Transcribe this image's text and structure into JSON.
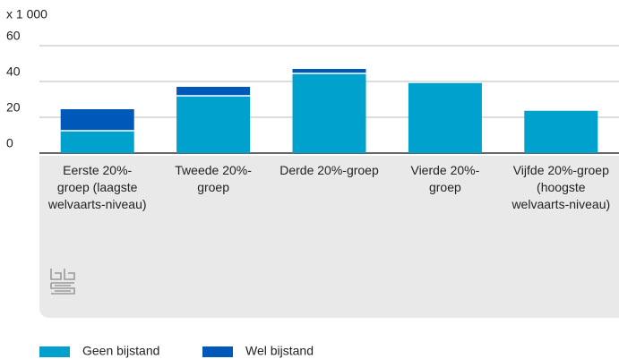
{
  "chart_data": {
    "type": "stacked-bar",
    "unit_label": "x 1 000",
    "categories": [
      "Eerste 20%-groep (laagste welvaarts-niveau)",
      "Tweede 20%-groep",
      "Derde 20%-groep",
      "Vierde 20%-groep",
      "Vijfde 20%-groep (hoogste welvaarts-niveau)"
    ],
    "series": [
      {
        "name": "Geen bijstand",
        "color": "#00a1cd",
        "values": [
          12.5,
          32,
          44.5,
          39.5,
          24
        ]
      },
      {
        "name": "Wel bijstand",
        "color": "#0058b8",
        "values": [
          12,
          5,
          2.5,
          0.3,
          0.2
        ]
      }
    ],
    "ylim": [
      0,
      60
    ],
    "yticks": [
      0,
      20,
      40,
      60
    ],
    "grid": true
  }
}
